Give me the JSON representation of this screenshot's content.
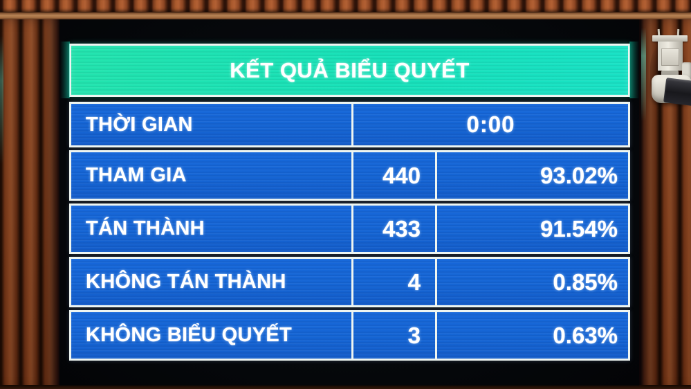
{
  "board": {
    "title": "KẾT QUẢ BIỂU QUYẾT",
    "rows": [
      {
        "label": "THỜI GIAN",
        "value": "0:00"
      },
      {
        "label": "THAM GIA",
        "count": "440",
        "percent": "93.02%"
      },
      {
        "label": "TÁN THÀNH",
        "count": "433",
        "percent": "91.54%"
      },
      {
        "label": "KHÔNG TÁN THÀNH",
        "count": "4",
        "percent": "0.85%"
      },
      {
        "label": "KHÔNG BIỂU QUYẾT",
        "count": "3",
        "percent": "0.63%"
      }
    ],
    "colors": {
      "cell_blue": "#1565d4",
      "title_teal": "#17e1b9",
      "border_white": "#eef5f1",
      "text_white": "#ffffff",
      "screen_black": "#06080a"
    }
  }
}
